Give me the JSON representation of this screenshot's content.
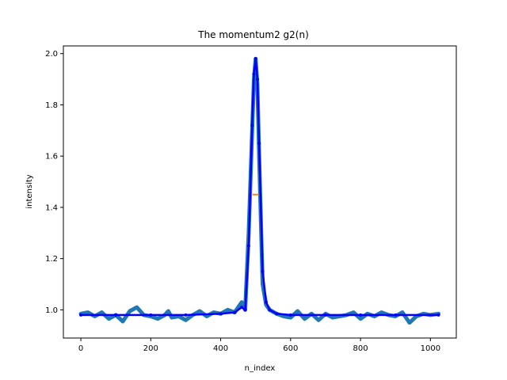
{
  "chart_data": {
    "type": "line",
    "title": "The momentum2 g2(n)",
    "xlabel": "n_index",
    "ylabel": "intensity",
    "xlim": [
      -50,
      1074
    ],
    "ylim": [
      0.89,
      2.03
    ],
    "xticks": [
      0,
      200,
      400,
      600,
      800,
      1000
    ],
    "yticks": [
      1.0,
      1.2,
      1.4,
      1.6,
      1.8,
      2.0
    ],
    "xtick_labels": [
      "0",
      "200",
      "400",
      "600",
      "800",
      "1000"
    ],
    "ytick_labels": [
      "1.0",
      "1.2",
      "1.4",
      "1.6",
      "1.8",
      "2.0"
    ],
    "grid": false,
    "series": [
      {
        "role": "measured g2 (thick)",
        "color": "#1f77b4",
        "x": [
          0,
          20,
          40,
          60,
          80,
          100,
          120,
          140,
          160,
          180,
          200,
          220,
          240,
          250,
          260,
          280,
          300,
          320,
          340,
          360,
          380,
          400,
          420,
          440,
          460,
          470,
          480,
          490,
          495,
          500,
          505,
          510,
          520,
          530,
          540,
          560,
          580,
          600,
          620,
          640,
          660,
          680,
          700,
          720,
          740,
          760,
          780,
          800,
          820,
          840,
          860,
          880,
          900,
          920,
          940,
          960,
          980,
          1000,
          1023
        ],
        "y": [
          0.985,
          0.99,
          0.975,
          0.99,
          0.965,
          0.98,
          0.955,
          0.995,
          1.01,
          0.98,
          0.975,
          0.965,
          0.98,
          0.995,
          0.97,
          0.975,
          0.96,
          0.98,
          0.995,
          0.975,
          0.99,
          0.985,
          1.0,
          0.99,
          1.03,
          1.0,
          1.3,
          1.7,
          1.9,
          1.98,
          1.88,
          1.6,
          1.1,
          1.02,
          1.0,
          0.985,
          0.975,
          0.97,
          0.995,
          0.965,
          0.985,
          0.96,
          0.985,
          0.97,
          0.975,
          0.98,
          0.99,
          0.965,
          0.985,
          0.975,
          0.99,
          0.98,
          0.975,
          0.99,
          0.95,
          0.975,
          0.985,
          0.98,
          0.985
        ]
      },
      {
        "role": "fit (thin)",
        "color": "#0000ff",
        "x": [
          0,
          100,
          200,
          300,
          400,
          440,
          460,
          470,
          480,
          490,
          495,
          500,
          505,
          510,
          520,
          530,
          540,
          560,
          600,
          700,
          800,
          900,
          1023
        ],
        "y": [
          0.98,
          0.98,
          0.98,
          0.98,
          0.985,
          0.99,
          1.01,
          1.0,
          1.25,
          1.72,
          1.92,
          1.98,
          1.9,
          1.65,
          1.15,
          1.03,
          1.0,
          0.985,
          0.98,
          0.98,
          0.98,
          0.98,
          0.98
        ]
      },
      {
        "role": "marker",
        "color": "#ff7f0e",
        "x": [
          500
        ],
        "y": [
          1.45
        ]
      }
    ]
  }
}
